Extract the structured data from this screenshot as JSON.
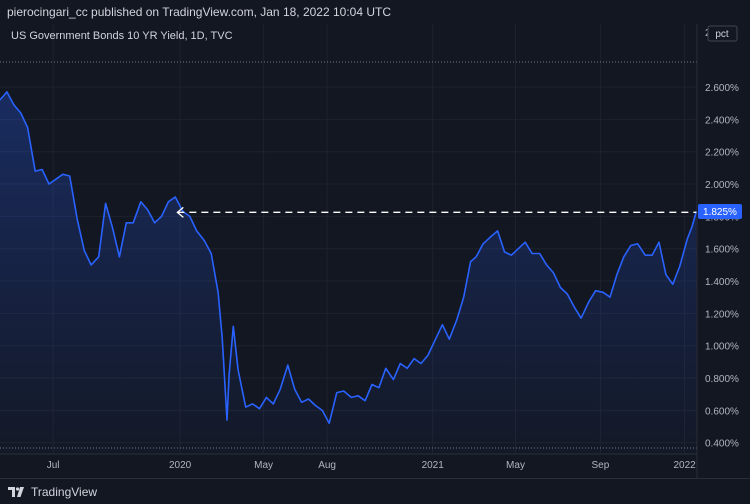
{
  "header": {
    "publish_line": "pierocingari_cc published on TradingView.com, Jan 18, 2022 10:04 UTC"
  },
  "footer": {
    "brand": "TradingView"
  },
  "colors": {
    "background": "#131722",
    "line": "#2962ff",
    "label_bg": "#2962ff",
    "grid": "#2a2e39",
    "axis_text": "#b2b5be",
    "dashed": "#ffffff"
  },
  "chart_data": {
    "type": "area",
    "title": "US Government Bonds 10 YR Yield, 1D, TVC",
    "unit_label": "pct",
    "top_tick_partial": "2",
    "last_value_label": "1.825%",
    "y_ticks": [
      "2.600%",
      "2.400%",
      "2.200%",
      "2.000%",
      "1.800%",
      "1.600%",
      "1.400%",
      "1.200%",
      "1.000%",
      "0.800%",
      "0.600%",
      "0.400%"
    ],
    "y_tick_values": [
      2.6,
      2.4,
      2.2,
      2.0,
      1.8,
      1.6,
      1.4,
      1.2,
      1.0,
      0.8,
      0.6,
      0.4
    ],
    "x_ticks": [
      "Jul",
      "2020",
      "May",
      "Aug",
      "2021",
      "May",
      "Sep",
      "2022"
    ],
    "x_tick_dates": [
      "2019-07-01",
      "2020-01-01",
      "2020-05-01",
      "2020-08-01",
      "2021-01-01",
      "2021-05-01",
      "2021-09-01",
      "2022-01-01"
    ],
    "xlim": [
      "2019-04-15",
      "2022-01-19"
    ],
    "ylim": [
      0.33,
      2.99
    ],
    "grid": true,
    "annotation": {
      "type": "dashed-horizontal-line",
      "y": 1.825,
      "from": "2019-12-28",
      "to": "2022-01-18"
    },
    "series": [
      {
        "x": [
          "2019-04-15",
          "2019-04-25",
          "2019-05-05",
          "2019-05-15",
          "2019-05-25",
          "2019-06-05",
          "2019-06-15",
          "2019-06-25",
          "2019-07-05",
          "2019-07-15",
          "2019-07-25",
          "2019-08-05",
          "2019-08-15",
          "2019-08-25",
          "2019-09-05",
          "2019-09-15",
          "2019-09-25",
          "2019-10-05",
          "2019-10-15",
          "2019-10-25",
          "2019-11-05",
          "2019-11-15",
          "2019-11-25",
          "2019-12-05",
          "2019-12-15",
          "2019-12-25",
          "2020-01-05",
          "2020-01-15",
          "2020-01-25",
          "2020-02-05",
          "2020-02-15",
          "2020-02-25",
          "2020-03-02",
          "2020-03-09",
          "2020-03-12",
          "2020-03-18",
          "2020-03-25",
          "2020-04-05",
          "2020-04-15",
          "2020-04-25",
          "2020-05-05",
          "2020-05-15",
          "2020-05-25",
          "2020-06-05",
          "2020-06-15",
          "2020-06-25",
          "2020-07-05",
          "2020-07-15",
          "2020-07-25",
          "2020-08-04",
          "2020-08-15",
          "2020-08-25",
          "2020-09-05",
          "2020-09-15",
          "2020-09-25",
          "2020-10-05",
          "2020-10-15",
          "2020-10-25",
          "2020-11-05",
          "2020-11-15",
          "2020-11-25",
          "2020-12-05",
          "2020-12-15",
          "2020-12-25",
          "2021-01-05",
          "2021-01-15",
          "2021-01-25",
          "2021-02-05",
          "2021-02-15",
          "2021-02-25",
          "2021-03-05",
          "2021-03-15",
          "2021-03-25",
          "2021-04-05",
          "2021-04-15",
          "2021-04-25",
          "2021-05-05",
          "2021-05-15",
          "2021-05-25",
          "2021-06-05",
          "2021-06-15",
          "2021-06-25",
          "2021-07-05",
          "2021-07-15",
          "2021-07-25",
          "2021-08-04",
          "2021-08-15",
          "2021-08-25",
          "2021-09-05",
          "2021-09-15",
          "2021-09-25",
          "2021-10-05",
          "2021-10-15",
          "2021-10-25",
          "2021-11-05",
          "2021-11-15",
          "2021-11-25",
          "2021-12-05",
          "2021-12-15",
          "2021-12-25",
          "2022-01-05",
          "2022-01-12",
          "2022-01-18"
        ],
        "values": [
          2.52,
          2.57,
          2.49,
          2.44,
          2.35,
          2.08,
          2.09,
          2.0,
          2.03,
          2.06,
          2.05,
          1.78,
          1.59,
          1.5,
          1.55,
          1.88,
          1.73,
          1.55,
          1.76,
          1.76,
          1.89,
          1.84,
          1.76,
          1.8,
          1.89,
          1.92,
          1.83,
          1.8,
          1.71,
          1.65,
          1.57,
          1.33,
          1.05,
          0.54,
          0.82,
          1.12,
          0.85,
          0.62,
          0.64,
          0.61,
          0.68,
          0.64,
          0.73,
          0.88,
          0.73,
          0.65,
          0.67,
          0.63,
          0.6,
          0.52,
          0.71,
          0.72,
          0.68,
          0.69,
          0.66,
          0.76,
          0.74,
          0.86,
          0.79,
          0.89,
          0.86,
          0.92,
          0.89,
          0.94,
          1.04,
          1.13,
          1.04,
          1.16,
          1.3,
          1.52,
          1.55,
          1.63,
          1.67,
          1.71,
          1.58,
          1.56,
          1.6,
          1.64,
          1.57,
          1.57,
          1.5,
          1.45,
          1.36,
          1.32,
          1.24,
          1.17,
          1.27,
          1.34,
          1.33,
          1.3,
          1.44,
          1.55,
          1.62,
          1.63,
          1.56,
          1.56,
          1.64,
          1.44,
          1.38,
          1.49,
          1.66,
          1.74,
          1.83
        ]
      }
    ]
  }
}
